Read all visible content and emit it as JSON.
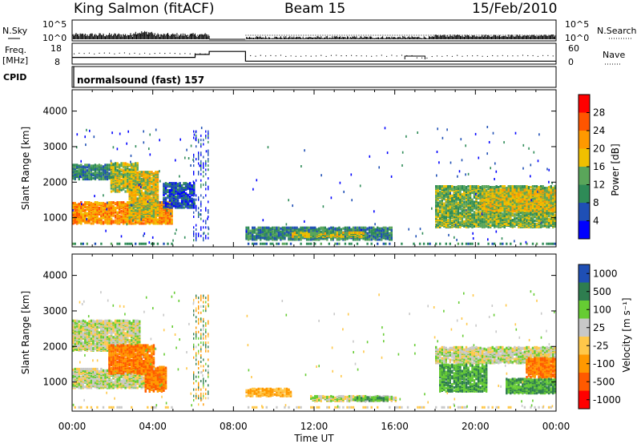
{
  "header": {
    "station": "King Salmon (fitACF)",
    "beam": "Beam 15",
    "date": "15/Feb/2010"
  },
  "left_labels": {
    "nsky": "N.Sky",
    "freq_line1": "Freq.",
    "freq_line2": "[MHz]",
    "cpid": "CPID"
  },
  "right_labels": {
    "nsearch": "N.Search",
    "nave": "Nave"
  },
  "cpid_text": "normalsound (fast) 157",
  "colors": {
    "power": [
      "#0000ff",
      "#1f4fb5",
      "#2e8b57",
      "#5aa65a",
      "#f0c000",
      "#ff9900",
      "#ff5500",
      "#ff0000"
    ],
    "velocity": [
      "#ff0000",
      "#ff5a00",
      "#ff9900",
      "#ffc84a",
      "#c8c8c8",
      "#66cc33",
      "#2e7d4f",
      "#1f4fb5"
    ]
  },
  "chart_data": [
    {
      "type": "line",
      "name": "N.Sky / N.Search",
      "yticks": [
        "10^5",
        "10^0"
      ],
      "yticks_right": [
        "10^5",
        "10^0"
      ],
      "xlim": [
        0,
        24
      ],
      "gaps": [
        [
          6.8,
          8.6
        ]
      ]
    },
    {
      "type": "line",
      "name": "Freq / Nave",
      "yticks": [
        8,
        18
      ],
      "yticks_right": [
        0,
        60
      ],
      "xlim": [
        0,
        24
      ],
      "frequency_mhz": [
        [
          0,
          10.5
        ],
        [
          6.1,
          10.5
        ],
        [
          6.1,
          12.5
        ],
        [
          6.8,
          12.5
        ],
        [
          6.8,
          14.5
        ],
        [
          8.6,
          14.5
        ],
        [
          8.6,
          8
        ],
        [
          24,
          8
        ]
      ],
      "nave": [
        [
          0,
          10
        ],
        [
          6.1,
          10
        ],
        [
          6.1,
          14
        ],
        [
          6.8,
          14
        ],
        [
          6.8,
          17
        ],
        [
          8.6,
          17
        ],
        [
          8.6,
          8
        ],
        [
          24,
          8
        ]
      ],
      "gaps": [
        [
          6.8,
          8.6
        ]
      ]
    },
    {
      "type": "heatmap",
      "name": "Power",
      "ylabel": "Slant Range [km]",
      "yticks": [
        1000,
        2000,
        3000,
        4000
      ],
      "ylim": [
        180,
        4600
      ],
      "xlim": [
        0,
        24
      ],
      "colorbar": {
        "label": "Power [dB]",
        "ticks": [
          4,
          8,
          12,
          16,
          20,
          24,
          28
        ],
        "range": [
          0,
          32
        ]
      },
      "blobs": [
        {
          "x": [
            0,
            4.9
          ],
          "y": [
            800,
            1400
          ],
          "v": 22
        },
        {
          "x": [
            0,
            2.1
          ],
          "y": [
            2050,
            2450
          ],
          "v": 10
        },
        {
          "x": [
            1.9,
            3.3
          ],
          "y": [
            1700,
            2500
          ],
          "v": 16
        },
        {
          "x": [
            2.8,
            4.3
          ],
          "y": [
            950,
            2250
          ],
          "v": 18
        },
        {
          "x": [
            4.5,
            6.0
          ],
          "y": [
            1250,
            1950
          ],
          "v": 6
        },
        {
          "x": [
            8.5,
            15.8
          ],
          "y": [
            350,
            700
          ],
          "v": 10
        },
        {
          "x": [
            10.9,
            14.4
          ],
          "y": [
            430,
            560
          ],
          "v": 16
        },
        {
          "x": [
            18.0,
            24.0
          ],
          "y": [
            700,
            1850
          ],
          "v": 14
        },
        {
          "x": [
            20.3,
            24.0
          ],
          "y": [
            1150,
            1750
          ],
          "v": 18
        }
      ],
      "ground_strip": {
        "y": [
          180,
          300
        ],
        "v": 10
      }
    },
    {
      "type": "heatmap",
      "name": "Velocity",
      "xlabel": "Time UT",
      "ylabel": "Slant Range [km]",
      "yticks": [
        1000,
        2000,
        3000,
        4000
      ],
      "ylim": [
        180,
        4600
      ],
      "xlim": [
        0,
        24
      ],
      "xticks": [
        "00:00",
        "04:00",
        "08:00",
        "12:00",
        "16:00",
        "20:00",
        "00:00"
      ],
      "colorbar": {
        "label": "Velocity [m s⁻¹]",
        "ticks": [
          1000,
          500,
          100,
          25,
          -25,
          -100,
          -500,
          -1000
        ]
      },
      "blobs": [
        {
          "x": [
            0,
            4.6
          ],
          "y": [
            800,
            1350
          ],
          "v": 0
        },
        {
          "x": [
            0,
            3.4
          ],
          "y": [
            1850,
            2700
          ],
          "v": 0
        },
        {
          "x": [
            1.8,
            4.1
          ],
          "y": [
            1200,
            2000
          ],
          "v": -500
        },
        {
          "x": [
            3.6,
            4.6
          ],
          "y": [
            700,
            1400
          ],
          "v": -500
        },
        {
          "x": [
            8.5,
            10.8
          ],
          "y": [
            570,
            780
          ],
          "v": -100
        },
        {
          "x": [
            11.8,
            16.0
          ],
          "y": [
            430,
            580
          ],
          "v": 0
        },
        {
          "x": [
            14.0,
            15.6
          ],
          "y": [
            440,
            540
          ],
          "v": 100
        },
        {
          "x": [
            18.0,
            24.0
          ],
          "y": [
            1500,
            1950
          ],
          "v": 0
        },
        {
          "x": [
            18.2,
            20.6
          ],
          "y": [
            700,
            1450
          ],
          "v": 100
        },
        {
          "x": [
            21.5,
            24.0
          ],
          "y": [
            650,
            1050
          ],
          "v": 100
        },
        {
          "x": [
            22.5,
            24.0
          ],
          "y": [
            1100,
            1650
          ],
          "v": -500
        }
      ],
      "ground_strip": {
        "y": [
          180,
          320
        ],
        "v": -25
      }
    }
  ]
}
